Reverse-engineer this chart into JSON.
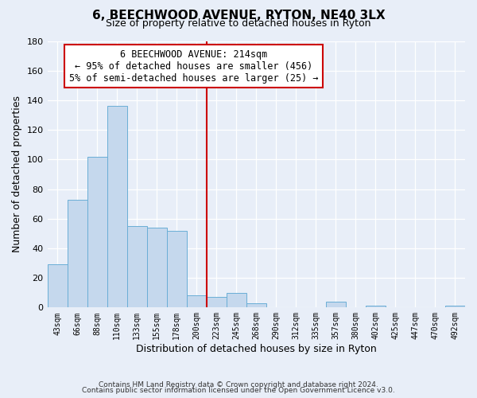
{
  "title": "6, BEECHWOOD AVENUE, RYTON, NE40 3LX",
  "subtitle": "Size of property relative to detached houses in Ryton",
  "xlabel": "Distribution of detached houses by size in Ryton",
  "ylabel": "Number of detached properties",
  "bar_labels": [
    "43sqm",
    "66sqm",
    "88sqm",
    "110sqm",
    "133sqm",
    "155sqm",
    "178sqm",
    "200sqm",
    "223sqm",
    "245sqm",
    "268sqm",
    "290sqm",
    "312sqm",
    "335sqm",
    "357sqm",
    "380sqm",
    "402sqm",
    "425sqm",
    "447sqm",
    "470sqm",
    "492sqm"
  ],
  "bar_heights": [
    29,
    73,
    102,
    136,
    55,
    54,
    52,
    8,
    7,
    10,
    3,
    0,
    0,
    0,
    4,
    0,
    1,
    0,
    0,
    0,
    1
  ],
  "bar_color": "#c5d8ed",
  "bar_edge_color": "#6aaed6",
  "vline_x_index": 8,
  "vline_color": "#cc0000",
  "annotation_title": "6 BEECHWOOD AVENUE: 214sqm",
  "annotation_line1": "← 95% of detached houses are smaller (456)",
  "annotation_line2": "5% of semi-detached houses are larger (25) →",
  "annotation_box_color": "#ffffff",
  "annotation_box_edge_color": "#cc0000",
  "ylim": [
    0,
    180
  ],
  "yticks": [
    0,
    20,
    40,
    60,
    80,
    100,
    120,
    140,
    160,
    180
  ],
  "footer1": "Contains HM Land Registry data © Crown copyright and database right 2024.",
  "footer2": "Contains public sector information licensed under the Open Government Licence v3.0.",
  "bg_color": "#e8eef8",
  "plot_bg_color": "#e8eef8"
}
